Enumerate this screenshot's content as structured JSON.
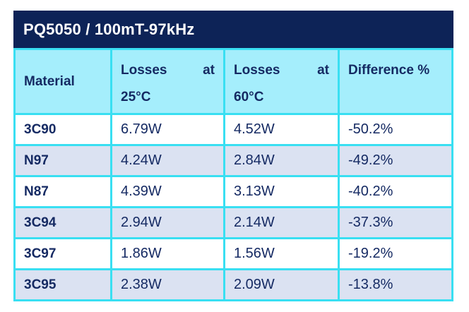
{
  "title": "PQ5050 / 100mT-97kHz",
  "colors": {
    "title_band_bg": "#0d2357",
    "title_text": "#ffffff",
    "header_bg": "#a5eefc",
    "grid_border": "#39dff2",
    "row_alt_bg": "#dbe2f2",
    "row_bg": "#ffffff",
    "cell_text": "#152a63"
  },
  "table": {
    "header": {
      "material": "Material",
      "losses25": {
        "word1": "Losses",
        "word2": "at",
        "line2": "25°C"
      },
      "losses60": {
        "word1": "Losses",
        "word2": "at",
        "line2": "60°C"
      },
      "difference": "Difference %"
    },
    "rows": [
      {
        "material": "3C90",
        "loss25": "6.79W",
        "loss60": "4.52W",
        "diff": "-50.2%"
      },
      {
        "material": "N97",
        "loss25": "4.24W",
        "loss60": "2.84W",
        "diff": "-49.2%"
      },
      {
        "material": "N87",
        "loss25": "4.39W",
        "loss60": "3.13W",
        "diff": "-40.2%"
      },
      {
        "material": "3C94",
        "loss25": "2.94W",
        "loss60": "2.14W",
        "diff": "-37.3%"
      },
      {
        "material": "3C97",
        "loss25": "1.86W",
        "loss60": "1.56W",
        "diff": "-19.2%"
      },
      {
        "material": "3C95",
        "loss25": "2.38W",
        "loss60": "2.09W",
        "diff": "-13.8%"
      }
    ]
  },
  "chart_data": {
    "type": "table",
    "title": "PQ5050 / 100mT-97kHz",
    "columns": [
      "Material",
      "Losses at 25°C",
      "Losses at 60°C",
      "Difference %"
    ],
    "rows": [
      [
        "3C90",
        "6.79W",
        "4.52W",
        "-50.2%"
      ],
      [
        "N97",
        "4.24W",
        "2.84W",
        "-49.2%"
      ],
      [
        "N87",
        "4.39W",
        "3.13W",
        "-40.2%"
      ],
      [
        "3C94",
        "2.94W",
        "2.14W",
        "-37.3%"
      ],
      [
        "3C97",
        "1.86W",
        "1.56W",
        "-19.2%"
      ],
      [
        "3C95",
        "2.38W",
        "2.09W",
        "-13.8%"
      ]
    ]
  }
}
